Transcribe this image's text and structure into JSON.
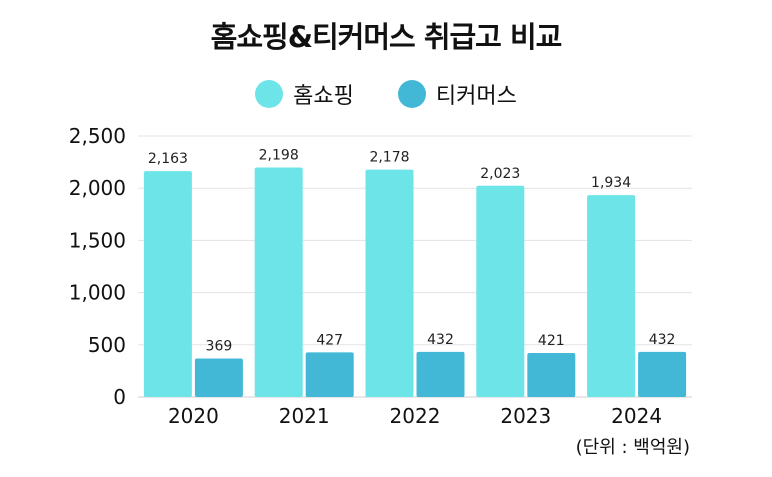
{
  "chart_data": {
    "type": "bar",
    "title": "홈쇼핑&티커머스 취급고 비교",
    "categories": [
      "2020",
      "2021",
      "2022",
      "2023",
      "2024"
    ],
    "series": [
      {
        "name": "홈쇼핑",
        "color": "#6de4e8",
        "values": [
          2163,
          2198,
          2178,
          2023,
          1934
        ],
        "labels": [
          "2,163",
          "2,198",
          "2,178",
          "2,023",
          "1,934"
        ]
      },
      {
        "name": "티커머스",
        "color": "#42b8d6",
        "values": [
          369,
          427,
          432,
          421,
          432
        ],
        "labels": [
          "369",
          "427",
          "432",
          "421",
          "432"
        ]
      }
    ],
    "yticks": [
      "0",
      "500",
      "1,000",
      "1,500",
      "2,000",
      "2,500"
    ],
    "ylim": [
      0,
      2500
    ],
    "legend_position": "top",
    "unit_note": "(단위 : 백억원)"
  }
}
